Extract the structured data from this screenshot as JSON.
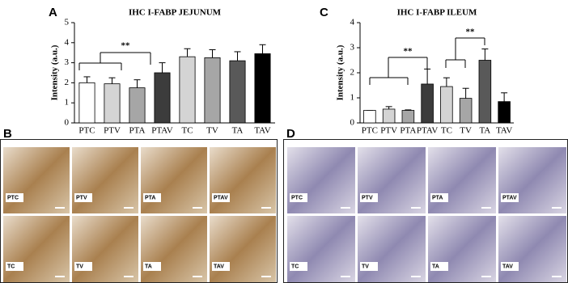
{
  "panel_labels": [
    "A",
    "B",
    "C",
    "D"
  ],
  "chart_data": [
    {
      "type": "bar",
      "title": "IHC I-FABP JEJUNUM",
      "y_label": "Intensity (a.u.)",
      "categories": [
        "PTC",
        "PTV",
        "PTA",
        "PTAV",
        "TC",
        "TV",
        "TA",
        "TAV"
      ],
      "values": [
        2.0,
        1.95,
        1.75,
        2.5,
        3.3,
        3.25,
        3.1,
        3.45
      ],
      "errors": [
        0.3,
        0.3,
        0.4,
        0.5,
        0.4,
        0.4,
        0.45,
        0.45
      ],
      "colors": [
        "#ffffff",
        "#d4d4d4",
        "#a6a6a6",
        "#3c3c3c",
        "#d4d4d4",
        "#a6a6a6",
        "#595959",
        "#000000"
      ],
      "ylim": [
        0,
        5
      ],
      "yticks": [
        0,
        1,
        2,
        3,
        4,
        5
      ],
      "annotations": [
        "**"
      ]
    },
    {
      "type": "bar",
      "title": "IHC I-FABP ILEUM",
      "y_label": "Intensity (a.u.)",
      "categories": [
        "PTC",
        "PTV",
        "PTA",
        "PTAV",
        "TC",
        "TV",
        "TA",
        "TAV"
      ],
      "values": [
        0.5,
        0.55,
        0.5,
        1.55,
        1.45,
        0.98,
        2.5,
        0.85
      ],
      "errors": [
        0.0,
        0.1,
        0.02,
        0.6,
        0.35,
        0.4,
        0.45,
        0.35
      ],
      "colors": [
        "#ffffff",
        "#d4d4d4",
        "#a6a6a6",
        "#3c3c3c",
        "#d4d4d4",
        "#a6a6a6",
        "#595959",
        "#000000"
      ],
      "ylim": [
        0,
        4
      ],
      "yticks": [
        0,
        1,
        2,
        3,
        4
      ],
      "annotations": [
        "**",
        "**"
      ]
    }
  ],
  "micrographs": [
    {
      "tiles": [
        "PTC",
        "PTV",
        "PTA",
        "PTAV",
        "TC",
        "TV",
        "TA",
        "TAV"
      ]
    },
    {
      "tiles": [
        "PTC",
        "PTV",
        "PTA",
        "PTAV",
        "TC",
        "TV",
        "TA",
        "TAV"
      ]
    }
  ]
}
